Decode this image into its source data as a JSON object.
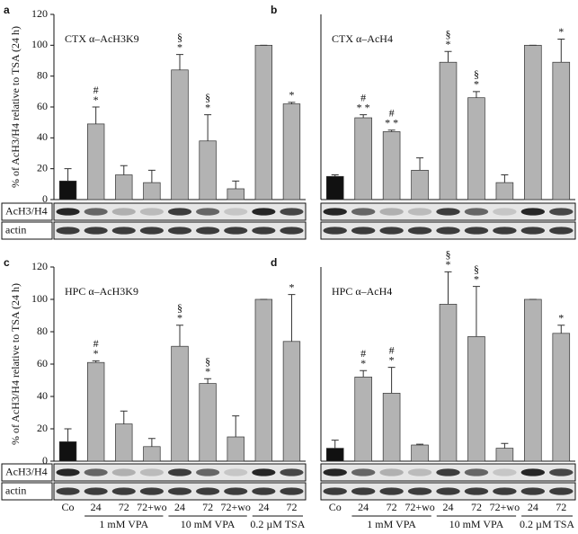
{
  "chart_data": [
    {
      "type": "bar",
      "panel": "a",
      "title": "CTX α–AcH3K9",
      "ylabel": "% of AcH3/H4 relative to TSA (24 h)",
      "blot_labels": [
        "AcH3/H4",
        "actin"
      ],
      "values": [
        12,
        49,
        16,
        11,
        84,
        38,
        7,
        100,
        62
      ],
      "errors": [
        8,
        11,
        6,
        8,
        10,
        17,
        5,
        0,
        1
      ],
      "colors": [
        "#111111",
        "#b3b3b3",
        "#b3b3b3",
        "#b3b3b3",
        "#b3b3b3",
        "#b3b3b3",
        "#b3b3b3",
        "#b3b3b3",
        "#b3b3b3"
      ],
      "annotations": [
        null,
        [
          "#",
          "*"
        ],
        null,
        null,
        [
          "§",
          "*"
        ],
        [
          "§",
          "*"
        ],
        null,
        null,
        [
          "*"
        ]
      ],
      "ylim": [
        0,
        120
      ],
      "yticks": [
        0,
        20,
        40,
        60,
        80,
        100,
        120
      ]
    },
    {
      "type": "bar",
      "panel": "b",
      "title": "CTX α–AcH4",
      "values": [
        15,
        53,
        44,
        19,
        89,
        66,
        11,
        100,
        89
      ],
      "errors": [
        1,
        2,
        1,
        8,
        7,
        4,
        5,
        0,
        15
      ],
      "colors": [
        "#111111",
        "#b3b3b3",
        "#b3b3b3",
        "#b3b3b3",
        "#b3b3b3",
        "#b3b3b3",
        "#b3b3b3",
        "#b3b3b3",
        "#b3b3b3"
      ],
      "annotations": [
        null,
        [
          "#",
          "* *"
        ],
        [
          "#",
          "* *"
        ],
        null,
        [
          "§",
          "*"
        ],
        [
          "§",
          "*"
        ],
        null,
        null,
        [
          "*"
        ]
      ],
      "ylim": [
        0,
        120
      ]
    },
    {
      "type": "bar",
      "panel": "c",
      "title": "HPC α–AcH3K9",
      "ylabel": "% of AcH3/H4 relative to TSA (24 h)",
      "blot_labels": [
        "AcH3/H4",
        "actin"
      ],
      "categories": [
        "Co",
        "24",
        "72",
        "72+wo",
        "24",
        "72",
        "72+wo",
        "24",
        "72"
      ],
      "groups": [
        "1 mM VPA",
        "10 mM VPA",
        "0.2 µM TSA"
      ],
      "values": [
        12,
        61,
        23,
        9,
        71,
        48,
        15,
        100,
        74
      ],
      "errors": [
        8,
        1,
        8,
        5,
        13,
        3,
        13,
        0,
        29
      ],
      "colors": [
        "#111111",
        "#b3b3b3",
        "#b3b3b3",
        "#b3b3b3",
        "#b3b3b3",
        "#b3b3b3",
        "#b3b3b3",
        "#b3b3b3",
        "#b3b3b3"
      ],
      "annotations": [
        null,
        [
          "#",
          "*"
        ],
        null,
        null,
        [
          "§",
          "*"
        ],
        [
          "§",
          "*"
        ],
        null,
        null,
        [
          "*"
        ]
      ],
      "ylim": [
        0,
        120
      ],
      "yticks": [
        0,
        20,
        40,
        60,
        80,
        100,
        120
      ]
    },
    {
      "type": "bar",
      "panel": "d",
      "title": "HPC α–AcH4",
      "categories": [
        "Co",
        "24",
        "72",
        "72+wo",
        "24",
        "72",
        "72+wo",
        "24",
        "72"
      ],
      "groups": [
        "1 mM VPA",
        "10 mM VPA",
        "0.2 µM TSA"
      ],
      "values": [
        8,
        52,
        42,
        10,
        97,
        77,
        8,
        100,
        79
      ],
      "errors": [
        5,
        4,
        16,
        0.5,
        20,
        31,
        3,
        0,
        5
      ],
      "colors": [
        "#111111",
        "#b3b3b3",
        "#b3b3b3",
        "#b3b3b3",
        "#b3b3b3",
        "#b3b3b3",
        "#b3b3b3",
        "#b3b3b3",
        "#b3b3b3"
      ],
      "annotations": [
        null,
        [
          "#",
          "*"
        ],
        [
          "#",
          "*"
        ],
        null,
        [
          "§",
          "*"
        ],
        [
          "§",
          "*"
        ],
        null,
        null,
        [
          "*"
        ]
      ],
      "ylim": [
        0,
        120
      ]
    }
  ]
}
